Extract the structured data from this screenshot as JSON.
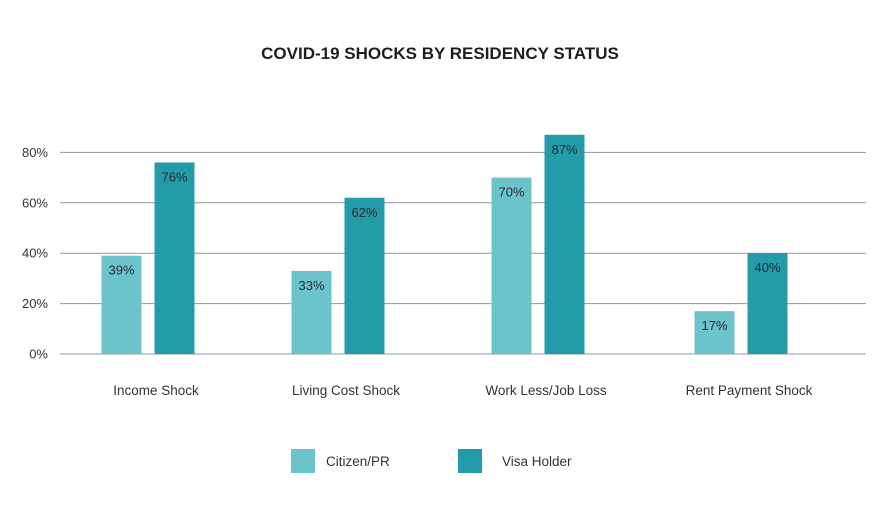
{
  "chart_data": {
    "type": "bar",
    "title": "COVID-19 SHOCKS BY RESIDENCY STATUS",
    "xlabel": "",
    "ylabel": "",
    "categories": [
      "Income Shock",
      "Living Cost Shock",
      "Work Less/Job Loss",
      "Rent Payment Shock"
    ],
    "series": [
      {
        "name": "Citizen/PR",
        "values": [
          39,
          33,
          70,
          17
        ],
        "labels": [
          "39%",
          "33%",
          "70%",
          "17%"
        ],
        "color": "#6cc3cc"
      },
      {
        "name": "Visa Holder",
        "values": [
          76,
          62,
          87,
          40
        ],
        "labels": [
          "76%",
          "62%",
          "87%",
          "40%"
        ],
        "color": "#239ba9"
      }
    ],
    "ylim": [
      0,
      95
    ],
    "yticks": [
      0,
      20,
      40,
      60,
      80
    ],
    "ytick_labels": [
      "0%",
      "20%",
      "40%",
      "60%",
      "80%"
    ],
    "grid": true,
    "legend_position": "bottom-center",
    "gridline_color": "#8a99a8"
  }
}
